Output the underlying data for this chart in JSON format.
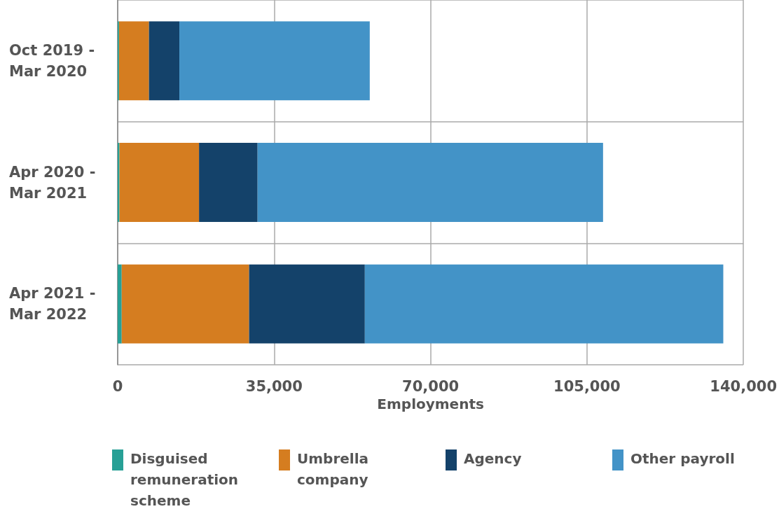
{
  "chart_data": {
    "type": "bar",
    "orientation": "horizontal",
    "stacked": true,
    "xlabel": "Employments",
    "categories": [
      "Oct 2019 -\nMar 2020",
      "Apr 2020 -\nMar 2021",
      "Apr 2021 -\nMar 2022"
    ],
    "series": [
      {
        "name": "Disguised remuneration scheme",
        "color": "#27a096",
        "values": [
          300,
          400,
          900
        ]
      },
      {
        "name": "Umbrella company",
        "color": "#d57d20",
        "values": [
          6700,
          17800,
          28500
        ]
      },
      {
        "name": "Agency",
        "color": "#14426a",
        "values": [
          6800,
          13100,
          25900
        ]
      },
      {
        "name": "Other payroll",
        "color": "#4393c7",
        "values": [
          42600,
          77300,
          80200
        ]
      }
    ],
    "xlim": [
      0,
      140000
    ],
    "xticks": [
      0,
      {
        "value": 35000,
        "label": "35,000"
      },
      {
        "value": 70000,
        "label": "70,000"
      },
      {
        "value": 105000,
        "label": "105,000"
      },
      {
        "value": 140000,
        "label": "140,000"
      }
    ],
    "grid": true,
    "legend": "bottom"
  }
}
